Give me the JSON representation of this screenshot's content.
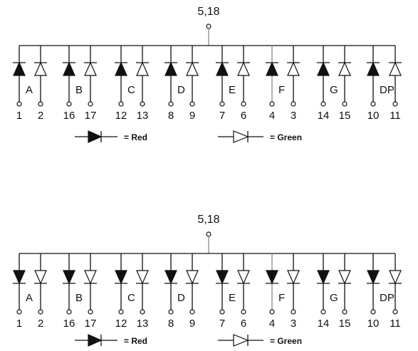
{
  "panels": [
    {
      "common_pin": "5,18",
      "groups": [
        {
          "segment": "A",
          "red_pin": "1",
          "green_pin": "2"
        },
        {
          "segment": "B",
          "red_pin": "16",
          "green_pin": "17"
        },
        {
          "segment": "C",
          "red_pin": "12",
          "green_pin": "13"
        },
        {
          "segment": "D",
          "red_pin": "8",
          "green_pin": "9"
        },
        {
          "segment": "E",
          "red_pin": "7",
          "green_pin": "6"
        },
        {
          "segment": "F",
          "red_pin": "4",
          "green_pin": "3"
        },
        {
          "segment": "G",
          "red_pin": "14",
          "green_pin": "15"
        },
        {
          "segment": "DP",
          "red_pin": "10",
          "green_pin": "11"
        }
      ],
      "legend": {
        "red_label": "= Red",
        "green_label": "= Green"
      }
    },
    {
      "common_pin": "5,18",
      "groups": [
        {
          "segment": "A",
          "red_pin": "1",
          "green_pin": "2"
        },
        {
          "segment": "B",
          "red_pin": "16",
          "green_pin": "17"
        },
        {
          "segment": "C",
          "red_pin": "12",
          "green_pin": "13"
        },
        {
          "segment": "D",
          "red_pin": "8",
          "green_pin": "9"
        },
        {
          "segment": "E",
          "red_pin": "7",
          "green_pin": "6"
        },
        {
          "segment": "F",
          "red_pin": "4",
          "green_pin": "3"
        },
        {
          "segment": "G",
          "red_pin": "14",
          "green_pin": "15"
        },
        {
          "segment": "DP",
          "red_pin": "10",
          "green_pin": "11"
        }
      ],
      "legend": {
        "red_label": "= Red",
        "green_label": "= Green"
      }
    }
  ]
}
